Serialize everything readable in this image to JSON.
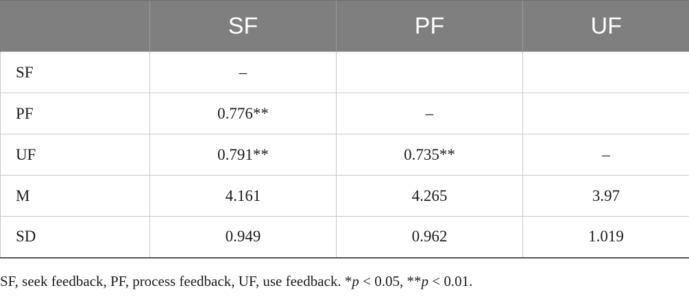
{
  "table": {
    "columns": [
      "",
      "SF",
      "PF",
      "UF"
    ],
    "rows": [
      {
        "label": "SF",
        "cells": [
          "–",
          "",
          ""
        ]
      },
      {
        "label": "PF",
        "cells": [
          "0.776**",
          "–",
          ""
        ]
      },
      {
        "label": "UF",
        "cells": [
          "0.791**",
          "0.735**",
          "–"
        ]
      },
      {
        "label": "M",
        "cells": [
          "4.161",
          "4.265",
          "3.97"
        ]
      },
      {
        "label": "SD",
        "cells": [
          "0.949",
          "0.962",
          "1.019"
        ]
      }
    ]
  },
  "footnote": {
    "text": "SF, seek feedback, PF, process feedback, UF, use feedback. *",
    "p1": "p",
    "p1_value": " < 0.05, **",
    "p2": "p",
    "p2_value": " < 0.01."
  }
}
